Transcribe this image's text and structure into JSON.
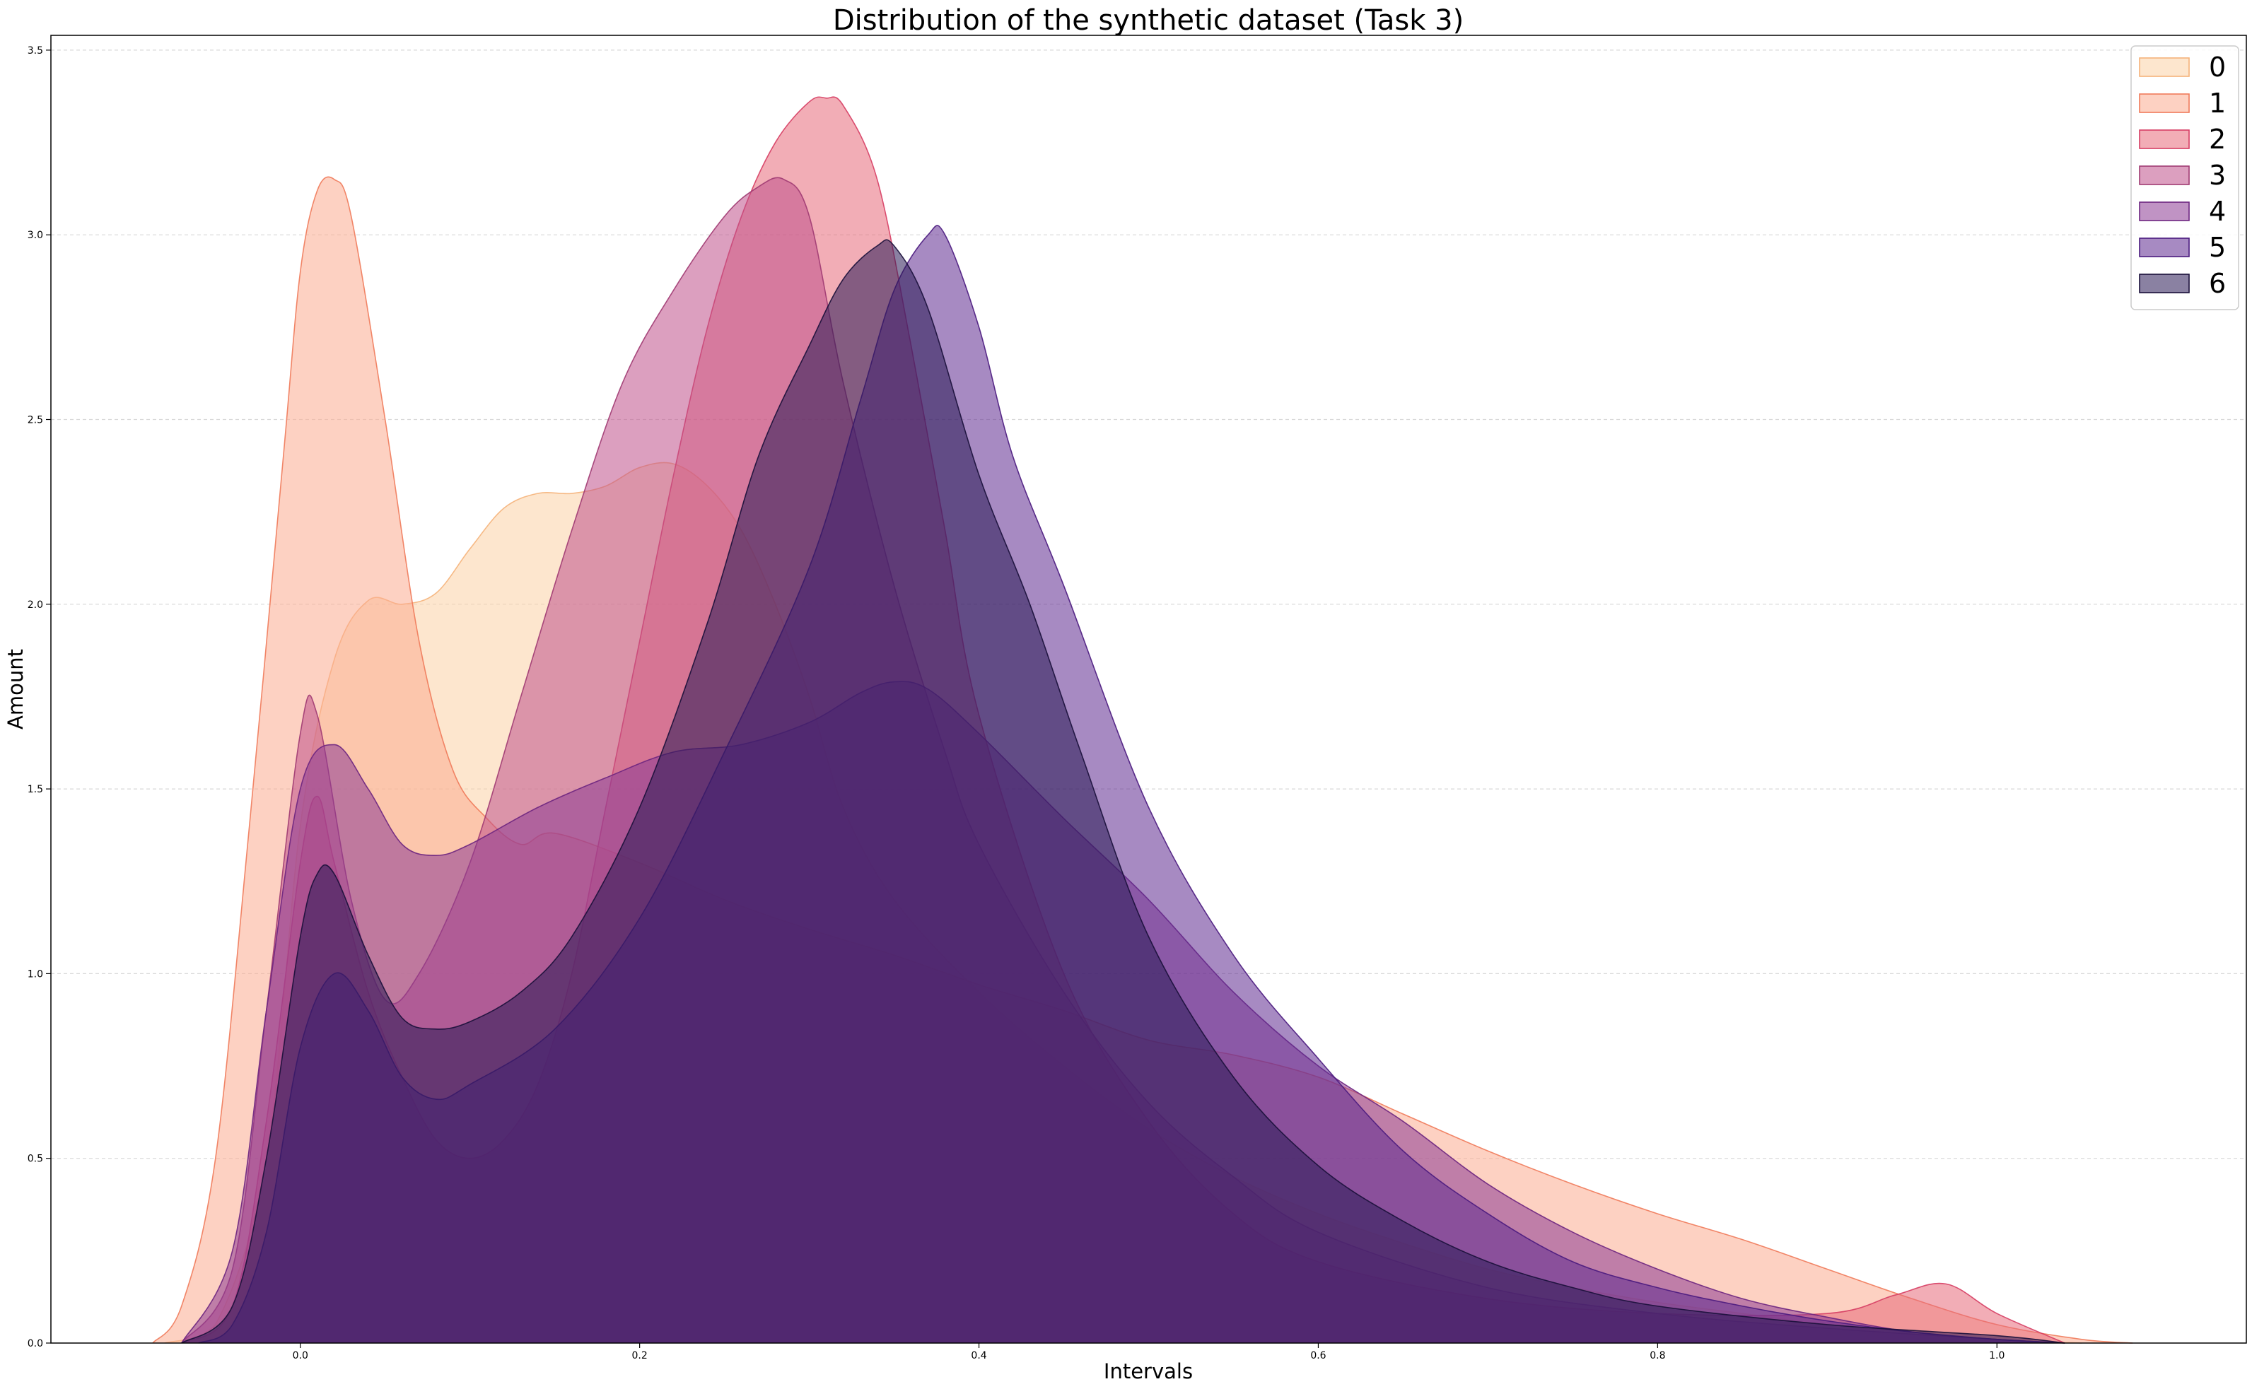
{
  "chart_data": {
    "type": "area",
    "title": "Distribution of the synthetic dataset (Task 3)",
    "xlabel": "Intervals",
    "ylabel": "Amount",
    "xlim": [
      -0.147,
      1.147
    ],
    "ylim": [
      0,
      3.54
    ],
    "xticks": [
      0.0,
      0.2,
      0.4,
      0.6,
      0.8,
      1.0
    ],
    "xtick_labels": [
      "0.0",
      "0.2",
      "0.4",
      "0.6",
      "0.8",
      "1.0"
    ],
    "yticks": [
      0.0,
      0.5,
      1.0,
      1.5,
      2.0,
      2.5,
      3.0,
      3.5
    ],
    "ytick_labels": [
      "0.0",
      "0.5",
      "1.0",
      "1.5",
      "2.0",
      "2.5",
      "3.0",
      "3.5"
    ],
    "grid": "horizontal dashed",
    "legend_position": "top-right",
    "series": [
      {
        "name": "0",
        "color": "#fcd1a5",
        "edge": "#f5b27a",
        "x": [
          -0.08,
          -0.05,
          -0.02,
          0.0,
          0.02,
          0.04,
          0.06,
          0.08,
          0.1,
          0.12,
          0.14,
          0.16,
          0.18,
          0.2,
          0.22,
          0.24,
          0.26,
          0.28,
          0.3,
          0.32,
          0.35,
          0.4,
          0.45,
          0.5,
          0.55,
          0.6,
          0.65,
          0.7,
          0.75,
          0.8,
          0.85,
          0.9,
          0.95,
          1.0,
          1.05
        ],
        "y": [
          0.0,
          0.05,
          0.5,
          1.4,
          1.85,
          2.01,
          2.0,
          2.03,
          2.15,
          2.26,
          2.3,
          2.3,
          2.32,
          2.37,
          2.38,
          2.32,
          2.2,
          2.0,
          1.75,
          1.45,
          1.2,
          0.95,
          0.75,
          0.58,
          0.45,
          0.35,
          0.27,
          0.2,
          0.15,
          0.11,
          0.08,
          0.05,
          0.03,
          0.01,
          0.0
        ]
      },
      {
        "name": "1",
        "color": "#fbac90",
        "edge": "#f07a5a",
        "x": [
          -0.087,
          -0.07,
          -0.05,
          -0.03,
          -0.01,
          0.0,
          0.01,
          0.02,
          0.03,
          0.05,
          0.07,
          0.09,
          0.11,
          0.13,
          0.15,
          0.2,
          0.25,
          0.3,
          0.35,
          0.4,
          0.45,
          0.5,
          0.55,
          0.6,
          0.65,
          0.7,
          0.75,
          0.8,
          0.85,
          0.9,
          0.95,
          1.0,
          1.05,
          1.08
        ],
        "y": [
          0.0,
          0.1,
          0.5,
          1.4,
          2.4,
          2.9,
          3.12,
          3.15,
          3.05,
          2.5,
          1.9,
          1.55,
          1.42,
          1.35,
          1.38,
          1.3,
          1.2,
          1.12,
          1.05,
          0.97,
          0.9,
          0.82,
          0.78,
          0.72,
          0.62,
          0.52,
          0.43,
          0.35,
          0.28,
          0.2,
          0.12,
          0.05,
          0.01,
          0.0
        ]
      },
      {
        "name": "2",
        "color": "#e8697a",
        "edge": "#d63d63",
        "x": [
          -0.07,
          -0.04,
          -0.02,
          0.0,
          0.01,
          0.02,
          0.04,
          0.06,
          0.08,
          0.1,
          0.12,
          0.14,
          0.16,
          0.18,
          0.2,
          0.22,
          0.24,
          0.26,
          0.28,
          0.3,
          0.31,
          0.32,
          0.34,
          0.36,
          0.38,
          0.4,
          0.45,
          0.5,
          0.55,
          0.6,
          0.7,
          0.8,
          0.9,
          0.94,
          0.97,
          1.0,
          1.04
        ],
        "y": [
          0.0,
          0.1,
          0.6,
          1.3,
          1.48,
          1.3,
          0.95,
          0.72,
          0.55,
          0.5,
          0.55,
          0.7,
          1.0,
          1.45,
          1.9,
          2.35,
          2.75,
          3.05,
          3.25,
          3.36,
          3.37,
          3.35,
          3.15,
          2.7,
          2.2,
          1.7,
          1.0,
          0.6,
          0.35,
          0.22,
          0.12,
          0.08,
          0.08,
          0.13,
          0.16,
          0.08,
          0.0
        ]
      },
      {
        "name": "3",
        "color": "#c0508a",
        "edge": "#a03a72",
        "x": [
          -0.07,
          -0.04,
          -0.02,
          0.0,
          0.01,
          0.03,
          0.05,
          0.07,
          0.1,
          0.13,
          0.16,
          0.19,
          0.22,
          0.25,
          0.27,
          0.285,
          0.3,
          0.32,
          0.35,
          0.38,
          0.4,
          0.45,
          0.5,
          0.55,
          0.6,
          0.7,
          0.8,
          0.9,
          1.0,
          1.04
        ],
        "y": [
          0.0,
          0.2,
          0.9,
          1.65,
          1.7,
          1.2,
          0.93,
          1.0,
          1.3,
          1.75,
          2.2,
          2.6,
          2.85,
          3.05,
          3.13,
          3.15,
          3.05,
          2.6,
          2.05,
          1.6,
          1.35,
          0.95,
          0.65,
          0.45,
          0.3,
          0.15,
          0.08,
          0.04,
          0.01,
          0.0
        ]
      },
      {
        "name": "4",
        "color": "#8d3b93",
        "edge": "#6d2580",
        "x": [
          -0.07,
          -0.04,
          -0.02,
          0.0,
          0.02,
          0.04,
          0.06,
          0.08,
          0.1,
          0.14,
          0.18,
          0.22,
          0.26,
          0.3,
          0.33,
          0.35,
          0.37,
          0.4,
          0.45,
          0.5,
          0.55,
          0.6,
          0.65,
          0.7,
          0.75,
          0.8,
          0.85,
          0.9,
          0.95,
          1.0,
          1.04
        ],
        "y": [
          0.0,
          0.25,
          0.9,
          1.5,
          1.62,
          1.5,
          1.35,
          1.32,
          1.35,
          1.45,
          1.53,
          1.6,
          1.62,
          1.68,
          1.76,
          1.79,
          1.77,
          1.65,
          1.42,
          1.2,
          0.95,
          0.75,
          0.6,
          0.43,
          0.3,
          0.2,
          0.12,
          0.07,
          0.03,
          0.01,
          0.0
        ]
      },
      {
        "name": "5",
        "color": "#5f2a8f",
        "edge": "#4a1a7e",
        "x": [
          -0.06,
          -0.04,
          -0.02,
          0.0,
          0.02,
          0.04,
          0.06,
          0.08,
          0.1,
          0.15,
          0.2,
          0.25,
          0.3,
          0.33,
          0.35,
          0.37,
          0.38,
          0.4,
          0.42,
          0.45,
          0.5,
          0.55,
          0.6,
          0.65,
          0.7,
          0.75,
          0.8,
          0.85,
          0.9,
          0.95,
          1.0,
          1.04
        ],
        "y": [
          0.0,
          0.05,
          0.3,
          0.8,
          1.0,
          0.9,
          0.72,
          0.66,
          0.7,
          0.85,
          1.15,
          1.6,
          2.1,
          2.55,
          2.85,
          3.0,
          3.0,
          2.75,
          2.4,
          2.05,
          1.45,
          1.05,
          0.77,
          0.52,
          0.35,
          0.22,
          0.15,
          0.1,
          0.06,
          0.03,
          0.01,
          0.0
        ]
      },
      {
        "name": "6",
        "color": "#2a1a55",
        "edge": "#1a0f3a",
        "x": [
          -0.07,
          -0.04,
          -0.02,
          0.0,
          0.01,
          0.02,
          0.04,
          0.06,
          0.08,
          0.1,
          0.13,
          0.16,
          0.2,
          0.24,
          0.27,
          0.3,
          0.32,
          0.34,
          0.35,
          0.37,
          0.4,
          0.43,
          0.46,
          0.5,
          0.55,
          0.6,
          0.65,
          0.7,
          0.75,
          0.8,
          0.9,
          1.0,
          1.04
        ],
        "y": [
          0.0,
          0.1,
          0.5,
          1.1,
          1.27,
          1.27,
          1.05,
          0.88,
          0.85,
          0.87,
          0.95,
          1.1,
          1.45,
          1.95,
          2.4,
          2.7,
          2.88,
          2.97,
          2.97,
          2.8,
          2.35,
          2.0,
          1.6,
          1.1,
          0.72,
          0.48,
          0.33,
          0.22,
          0.15,
          0.1,
          0.05,
          0.02,
          0.0
        ]
      }
    ]
  }
}
